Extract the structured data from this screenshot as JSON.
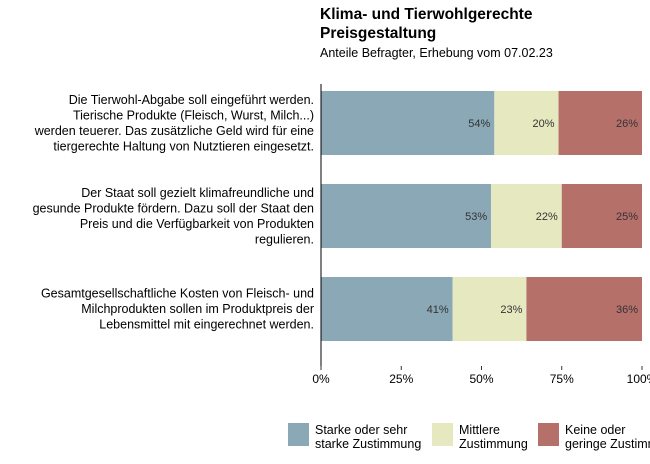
{
  "chart_data": {
    "type": "bar",
    "orientation": "horizontal",
    "stacked": true,
    "title": "Klima- und Tierwohlgerechte Preisgestaltung",
    "subtitle": "Anteile Befragter, Erhebung vom 07.02.23",
    "categories": [
      [
        "Die Tierwohl-Abgabe soll eingeführt werden.",
        "Tierische Produkte (Fleisch, Wurst, Milch...)",
        "werden teuerer. Das zusätzliche Geld wird für eine",
        "tiergerechte Haltung von Nutztieren eingesetzt."
      ],
      [
        "Der Staat soll gezielt klimafreundliche und",
        "gesunde Produkte fördern. Dazu soll der Staat den",
        "Preis und die Verfügbarkeit von Produkten",
        "regulieren."
      ],
      [
        "Gesamtgesellschaftliche Kosten von Fleisch- und",
        "Milchprodukten sollen im Produktpreis der",
        "Lebensmittel mit eingerechnet werden."
      ]
    ],
    "series": [
      {
        "name": [
          "Starke oder sehr",
          "starke Zustimmung"
        ],
        "color": "#8aa8b6",
        "values": [
          54,
          53,
          41
        ],
        "labels": [
          "54%",
          "53%",
          "41%"
        ]
      },
      {
        "name": [
          "Mittlere",
          "Zustimmung"
        ],
        "color": "#e6e9c0",
        "values": [
          20,
          22,
          23
        ],
        "labels": [
          "20%",
          "22%",
          "23%"
        ]
      },
      {
        "name": [
          "Keine oder",
          "geringe Zustimmung"
        ],
        "color": "#b5706a",
        "values": [
          26,
          25,
          36
        ],
        "labels": [
          "26%",
          "25%",
          "36%"
        ]
      }
    ],
    "xlim": [
      0,
      100
    ],
    "xticks": [
      "0%",
      "25%",
      "50%",
      "75%",
      "100%"
    ],
    "legend_position": "bottom",
    "grid": false
  }
}
